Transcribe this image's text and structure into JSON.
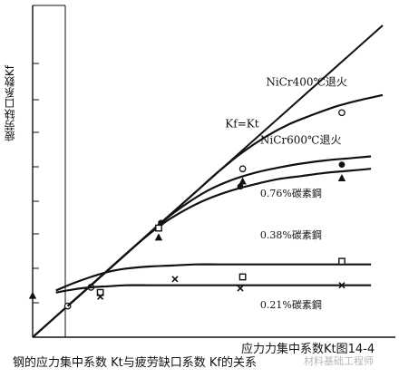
{
  "chart_data": {
    "type": "line",
    "ylabel": "疲劳缺口系数Kf",
    "xlabel": "应力力集中系数Kt图14-4",
    "caption": "钢的应力集中系数 Kt与疲劳缺口系数 Kf的关系",
    "xlim": [
      1.0,
      4.0
    ],
    "ylim": [
      1.0,
      4.0
    ],
    "grid": false,
    "series": [
      {
        "name": "Kf=Kt",
        "x": [
          1.0,
          4.0
        ],
        "y": [
          1.0,
          4.0
        ],
        "marker": "none",
        "label_at": [
          2.65,
          3.02
        ]
      },
      {
        "name": "NiCr400℃退火",
        "x": [
          1.0,
          1.2,
          1.4,
          1.6,
          1.8,
          2.0,
          2.2,
          2.4,
          2.6,
          2.8,
          3.0,
          3.2,
          3.4,
          3.6,
          3.8,
          4.0
        ],
        "y": [
          1.0,
          1.2,
          1.4,
          1.6,
          1.8,
          2.0,
          2.2,
          2.4,
          2.6,
          2.78,
          2.93,
          3.05,
          3.14,
          3.22,
          3.28,
          3.33
        ],
        "marker": "circle",
        "points": [
          [
            1.3,
            1.3
          ],
          [
            1.5,
            1.48
          ],
          [
            2.8,
            2.62
          ],
          [
            3.65,
            3.16
          ]
        ],
        "label_at": [
          3.0,
          3.42
        ]
      },
      {
        "name": "NiCr600℃退火",
        "x": [
          1.3,
          1.5,
          1.7,
          1.9,
          2.1,
          2.3,
          2.5,
          2.7,
          2.9,
          3.1,
          3.3,
          3.5,
          3.7,
          3.9
        ],
        "y": [
          1.3,
          1.5,
          1.7,
          1.9,
          2.1,
          2.27,
          2.41,
          2.51,
          2.58,
          2.63,
          2.67,
          2.7,
          2.72,
          2.74
        ],
        "marker": "filled-circle",
        "points": [
          [
            2.1,
            2.1
          ],
          [
            2.78,
            2.45
          ],
          [
            3.65,
            2.66
          ]
        ],
        "label_at": [
          2.95,
          2.86
        ]
      },
      {
        "name": "0.76%碳素鋼",
        "x": [
          1.3,
          1.5,
          1.7,
          1.9,
          2.1,
          2.3,
          2.5,
          2.7,
          2.9,
          3.1,
          3.3,
          3.5,
          3.7,
          3.9
        ],
        "y": [
          1.3,
          1.5,
          1.7,
          1.9,
          2.08,
          2.22,
          2.33,
          2.41,
          2.47,
          2.52,
          2.55,
          2.58,
          2.6,
          2.62
        ],
        "marker": "triangle",
        "points": [
          [
            1.0,
            1.4
          ],
          [
            2.08,
            1.96
          ],
          [
            2.8,
            2.5
          ],
          [
            3.65,
            2.53
          ]
        ],
        "label_at": [
          2.95,
          2.35
        ]
      },
      {
        "name": "0.38%碳素鋼",
        "x": [
          1.2,
          1.35,
          1.5,
          1.65,
          1.8,
          2.0,
          2.2,
          2.4,
          2.6,
          2.8,
          3.0,
          3.2,
          3.4,
          3.6,
          3.9
        ],
        "y": [
          1.45,
          1.52,
          1.58,
          1.63,
          1.66,
          1.68,
          1.69,
          1.7,
          1.7,
          1.7,
          1.7,
          1.7,
          1.7,
          1.7,
          1.7
        ],
        "marker": "square",
        "points": [
          [
            1.58,
            1.43
          ],
          [
            2.08,
            2.05
          ],
          [
            2.8,
            1.58
          ],
          [
            3.65,
            1.73
          ]
        ],
        "label_at": [
          2.95,
          1.95
        ]
      },
      {
        "name": "0.21%碳素鋼",
        "x": [
          1.2,
          1.35,
          1.5,
          1.65,
          1.8,
          2.0,
          2.2,
          2.4,
          2.6,
          2.8,
          3.0,
          3.2,
          3.4,
          3.6,
          3.9
        ],
        "y": [
          1.43,
          1.46,
          1.48,
          1.49,
          1.5,
          1.5,
          1.5,
          1.5,
          1.5,
          1.5,
          1.5,
          1.5,
          1.5,
          1.5,
          1.5
        ],
        "marker": "x",
        "points": [
          [
            1.58,
            1.39
          ],
          [
            2.22,
            1.56
          ],
          [
            2.78,
            1.47
          ],
          [
            3.65,
            1.5
          ]
        ],
        "label_at": [
          2.95,
          1.28
        ]
      }
    ]
  },
  "watermark": "材料基础工程师"
}
